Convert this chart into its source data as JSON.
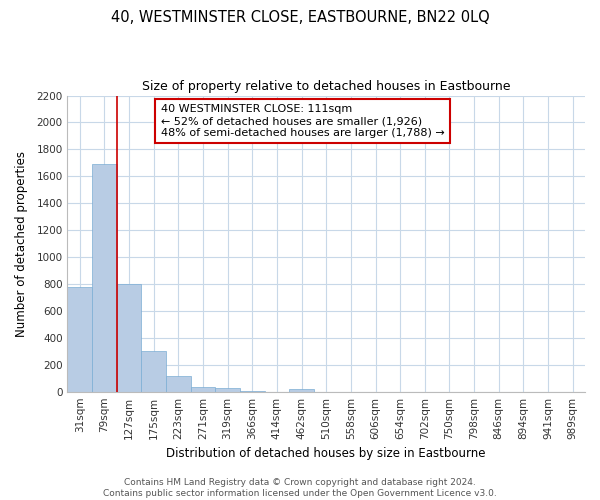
{
  "title": "40, WESTMINSTER CLOSE, EASTBOURNE, BN22 0LQ",
  "subtitle": "Size of property relative to detached houses in Eastbourne",
  "xlabel": "Distribution of detached houses by size in Eastbourne",
  "ylabel": "Number of detached properties",
  "categories": [
    "31sqm",
    "79sqm",
    "127sqm",
    "175sqm",
    "223sqm",
    "271sqm",
    "319sqm",
    "366sqm",
    "414sqm",
    "462sqm",
    "510sqm",
    "558sqm",
    "606sqm",
    "654sqm",
    "702sqm",
    "750sqm",
    "798sqm",
    "846sqm",
    "894sqm",
    "941sqm",
    "989sqm"
  ],
  "values": [
    780,
    1690,
    800,
    300,
    115,
    35,
    30,
    5,
    0,
    18,
    0,
    0,
    0,
    0,
    0,
    0,
    0,
    0,
    0,
    0,
    0
  ],
  "bar_color": "#b8cce4",
  "bar_edge_color": "#7badd4",
  "vline_index": 2,
  "vline_color": "#cc0000",
  "ylim": [
    0,
    2200
  ],
  "yticks": [
    0,
    200,
    400,
    600,
    800,
    1000,
    1200,
    1400,
    1600,
    1800,
    2000,
    2200
  ],
  "annotation_title": "40 WESTMINSTER CLOSE: 111sqm",
  "annotation_line1": "← 52% of detached houses are smaller (1,926)",
  "annotation_line2": "48% of semi-detached houses are larger (1,788) →",
  "footer_line1": "Contains HM Land Registry data © Crown copyright and database right 2024.",
  "footer_line2": "Contains public sector information licensed under the Open Government Licence v3.0.",
  "bg_color": "#ffffff",
  "grid_color": "#c8d8e8",
  "title_fontsize": 10.5,
  "subtitle_fontsize": 9,
  "axis_label_fontsize": 8.5,
  "tick_fontsize": 7.5,
  "annotation_fontsize": 8,
  "footer_fontsize": 6.5
}
